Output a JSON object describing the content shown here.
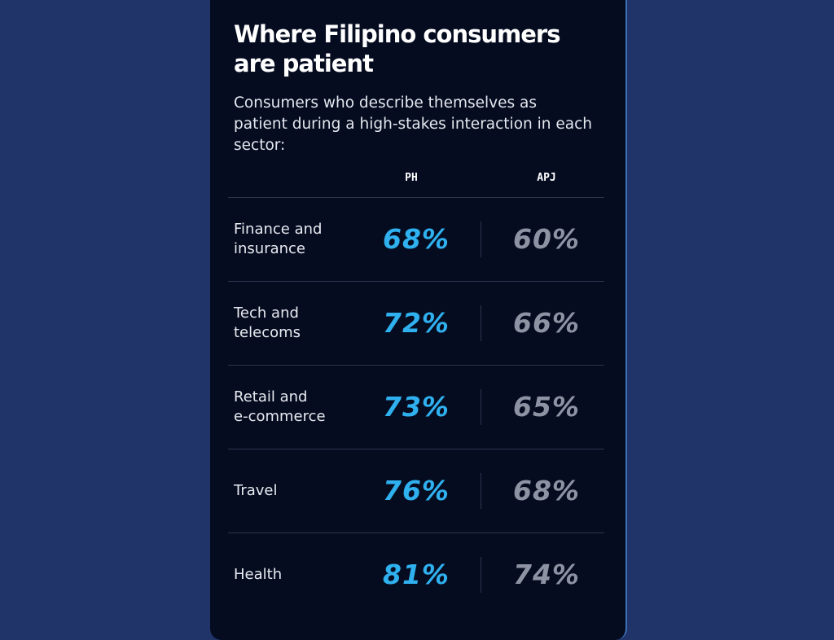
{
  "title": "Where Filipino consumers are patient",
  "subtitle": "Consumers who describe themselves as patient during a high-stakes interaction in each sector:",
  "colors": {
    "background": "#20346a",
    "card": "#050c20",
    "ph": "#2fb0ef",
    "apj": "#8d93a2"
  },
  "chart_data": {
    "type": "table",
    "title": "Where Filipino consumers are patient",
    "subtitle": "Consumers who describe themselves as patient during a high-stakes interaction in each sector:",
    "columns": [
      "PH",
      "APJ"
    ],
    "categories": [
      "Finance and insurance",
      "Tech and telecoms",
      "Retail and e-commerce",
      "Travel",
      "Health"
    ],
    "rows": [
      {
        "label": "Finance and\ninsurance",
        "ph": "68%",
        "apj": "60%"
      },
      {
        "label": "Tech and\ntelecoms",
        "ph": "72%",
        "apj": "66%"
      },
      {
        "label": "Retail and\ne-commerce",
        "ph": "73%",
        "apj": "65%"
      },
      {
        "label": "Travel",
        "ph": "76%",
        "apj": "68%"
      },
      {
        "label": "Health",
        "ph": "81%",
        "apj": "74%"
      }
    ],
    "series": [
      {
        "name": "PH",
        "values": [
          68,
          72,
          73,
          76,
          81
        ]
      },
      {
        "name": "APJ",
        "values": [
          60,
          66,
          65,
          68,
          74
        ]
      }
    ],
    "unit": "%"
  }
}
